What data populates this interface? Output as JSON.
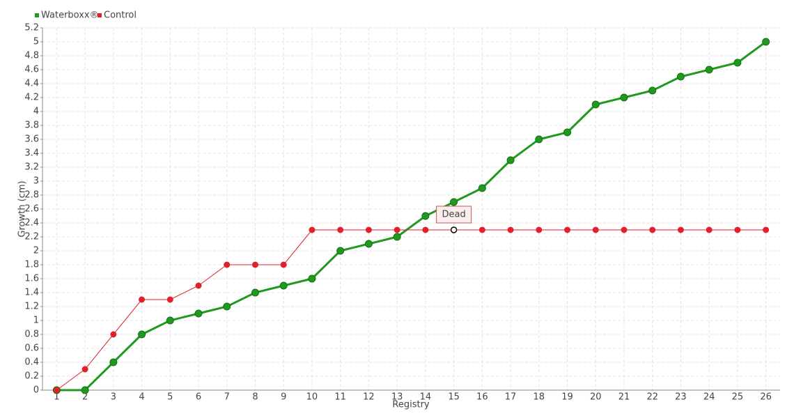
{
  "chart_data": {
    "type": "line",
    "x_label": "Registry",
    "y_label": "Growth (cm)",
    "categories": [
      "1",
      "2",
      "3",
      "4",
      "5",
      "6",
      "7",
      "8",
      "9",
      "10",
      "11",
      "12",
      "13",
      "14",
      "15",
      "16",
      "17",
      "18",
      "19",
      "20",
      "21",
      "22",
      "23",
      "24",
      "25",
      "26"
    ],
    "series": [
      {
        "name": "Waterboxx®",
        "color": "#1f9a1f",
        "values": [
          0,
          0,
          0.4,
          0.8,
          1.0,
          1.1,
          1.2,
          1.4,
          1.5,
          1.6,
          2.0,
          2.1,
          2.2,
          2.5,
          2.7,
          2.9,
          3.3,
          3.6,
          3.7,
          4.1,
          4.2,
          4.3,
          4.5,
          4.6,
          4.7,
          5.0
        ]
      },
      {
        "name": "Control",
        "color": "#e0202a",
        "values": [
          0,
          0.3,
          0.8,
          1.3,
          1.3,
          1.5,
          1.8,
          1.8,
          1.8,
          2.3,
          2.3,
          2.3,
          2.3,
          2.3,
          2.3,
          2.3,
          2.3,
          2.3,
          2.3,
          2.3,
          2.3,
          2.3,
          2.3,
          2.3,
          2.3,
          2.3
        ]
      }
    ],
    "annotations": [
      {
        "text": "Dead",
        "series": "Control",
        "x": "15"
      }
    ],
    "ylim": [
      0,
      5.2
    ],
    "yticks": [
      0,
      0.2,
      0.4,
      0.6,
      0.8,
      1,
      1.2,
      1.4,
      1.6,
      1.8,
      2,
      2.2,
      2.4,
      2.6,
      2.8,
      3,
      3.2,
      3.4,
      3.6,
      3.8,
      4,
      4.2,
      4.4,
      4.6,
      4.8,
      5,
      5.2
    ],
    "grid": true,
    "legend": "top-left"
  }
}
